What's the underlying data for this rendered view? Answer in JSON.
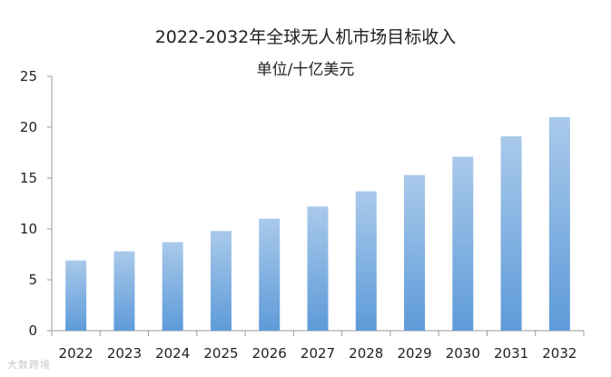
{
  "chart_data": {
    "type": "bar",
    "title": "2022-2032年全球无人机市场目标收入",
    "subtitle": "单位/十亿美元",
    "categories": [
      "2022",
      "2023",
      "2024",
      "2025",
      "2026",
      "2027",
      "2028",
      "2029",
      "2030",
      "2031",
      "2032"
    ],
    "values": [
      6.9,
      7.8,
      8.7,
      9.8,
      11.0,
      12.2,
      13.7,
      15.3,
      17.1,
      19.1,
      21.0
    ],
    "ylim": [
      0,
      25
    ],
    "yticks": [
      0,
      5,
      10,
      15,
      20,
      25
    ],
    "grid": false,
    "bar_color_top": "#a9c9ea",
    "bar_color_bottom": "#5e9bd9"
  },
  "watermark": "大数跨境"
}
